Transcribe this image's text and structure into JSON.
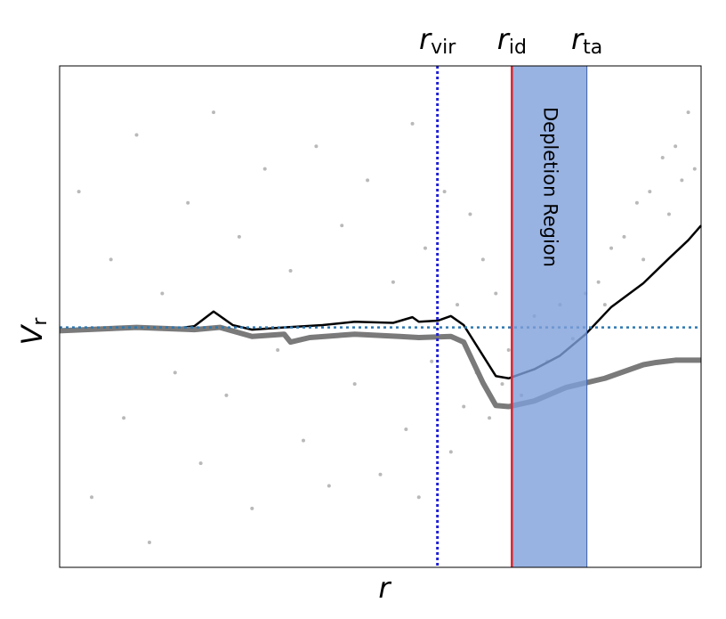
{
  "chart_data": {
    "type": "scatter-line",
    "x_label": "r",
    "y_label": {
      "text": "V",
      "subscript": "r"
    },
    "xlim": [
      0,
      1
    ],
    "ylim": [
      -2.12,
      2.31
    ],
    "hline": 0,
    "scatter": {
      "color": "#808080",
      "x": [
        0.03,
        0.05,
        0.08,
        0.1,
        0.12,
        0.14,
        0.16,
        0.18,
        0.2,
        0.22,
        0.24,
        0.26,
        0.28,
        0.3,
        0.32,
        0.34,
        0.36,
        0.38,
        0.4,
        0.42,
        0.44,
        0.46,
        0.48,
        0.5,
        0.52,
        0.54,
        0.55,
        0.56,
        0.57,
        0.58,
        0.6,
        0.61,
        0.62,
        0.63,
        0.64,
        0.65,
        0.66,
        0.67,
        0.68,
        0.69,
        0.7,
        0.72,
        0.74,
        0.76,
        0.78,
        0.8,
        0.82,
        0.84,
        0.86,
        0.88,
        0.9,
        0.92,
        0.94,
        0.96,
        0.98,
        0.99,
        0.85,
        0.91,
        0.95,
        0.97
      ],
      "values": [
        1.2,
        -1.5,
        0.6,
        -0.8,
        1.7,
        -1.9,
        0.3,
        -0.4,
        1.1,
        -1.2,
        1.9,
        -0.6,
        0.8,
        -1.6,
        1.4,
        -0.2,
        0.5,
        -1.0,
        1.6,
        -1.4,
        0.9,
        -0.5,
        1.3,
        -1.3,
        0.4,
        -0.9,
        1.8,
        -1.5,
        0.7,
        -0.3,
        1.2,
        -1.1,
        0.2,
        -0.7,
        1.0,
        -0.4,
        0.6,
        -0.8,
        0.3,
        -0.5,
        -0.2,
        -0.6,
        0.1,
        -0.3,
        0.2,
        -0.1,
        0.3,
        0.4,
        0.7,
        0.8,
        1.1,
        1.2,
        1.5,
        1.6,
        1.9,
        1.4,
        0.2,
        0.6,
        1.0,
        1.3
      ]
    },
    "series": [
      {
        "color": "#000000",
        "width": 2.5,
        "x": [
          0,
          0.05,
          0.12,
          0.18,
          0.21,
          0.24,
          0.27,
          0.3,
          0.35,
          0.41,
          0.46,
          0.52,
          0.55,
          0.56,
          0.59,
          0.61,
          0.63,
          0.66,
          0.68,
          0.7,
          0.74,
          0.78,
          0.82,
          0.86,
          0.91,
          0.95,
          0.98,
          1
        ],
        "values": [
          -0.03,
          -0.02,
          0,
          -0.01,
          0.01,
          0.14,
          0.02,
          -0.02,
          0,
          0.02,
          0.05,
          0.04,
          0.09,
          0.05,
          0.06,
          0.1,
          0.02,
          -0.25,
          -0.43,
          -0.45,
          -0.37,
          -0.25,
          -0.06,
          0.18,
          0.39,
          0.61,
          0.77,
          0.9
        ]
      },
      {
        "color": "#7a7a7a",
        "width": 6,
        "x": [
          0,
          0.12,
          0.21,
          0.25,
          0.3,
          0.35,
          0.36,
          0.39,
          0.46,
          0.53,
          0.56,
          0.61,
          0.63,
          0.66,
          0.68,
          0.7,
          0.74,
          0.79,
          0.85,
          0.91,
          0.93,
          0.96,
          1
        ],
        "values": [
          -0.03,
          0,
          -0.02,
          0,
          -0.08,
          -0.06,
          -0.13,
          -0.09,
          -0.06,
          -0.08,
          -0.09,
          -0.08,
          -0.13,
          -0.49,
          -0.69,
          -0.7,
          -0.65,
          -0.53,
          -0.45,
          -0.33,
          -0.31,
          -0.29,
          -0.29
        ]
      }
    ],
    "markers": [
      {
        "label": "r",
        "subscript": "vir",
        "x": 0.589,
        "color": "#1f1fd6",
        "style": "dotted"
      },
      {
        "label": "r",
        "subscript": "id",
        "x": 0.705,
        "color": "#e0242c",
        "style": "solid"
      },
      {
        "label": "r",
        "subscript": "ta",
        "x": 0.822,
        "color": "#3b5fa8",
        "style": "none"
      }
    ],
    "region": {
      "label": "Depletion Region",
      "x": [
        0.705,
        0.822
      ],
      "color": "#7e9fd9"
    }
  }
}
